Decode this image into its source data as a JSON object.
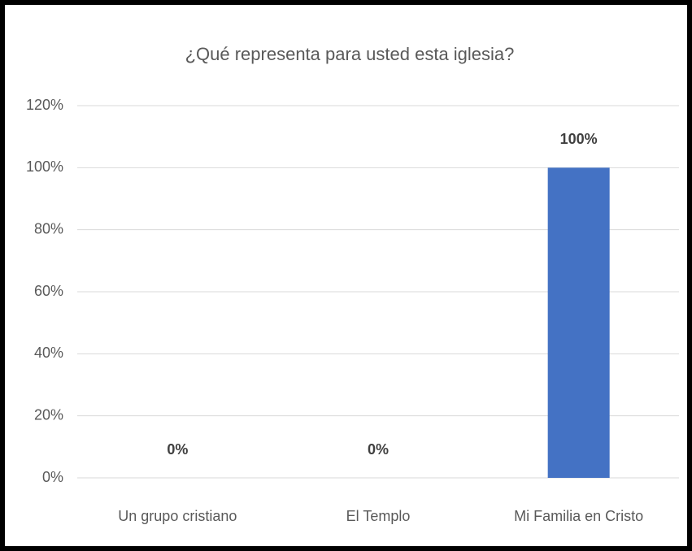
{
  "chart_data": {
    "type": "bar",
    "title": "¿Qué representa para usted esta iglesia?",
    "categories": [
      "Un grupo cristiano",
      "El Templo",
      "Mi Familia en Cristo"
    ],
    "values": [
      0,
      0,
      100
    ],
    "value_labels": [
      "0%",
      "0%",
      "100%"
    ],
    "color": "#4472c4",
    "ylim": [
      0,
      120
    ],
    "yticks": [
      {
        "value": 0,
        "label": "0%"
      },
      {
        "value": 20,
        "label": "20%"
      },
      {
        "value": 40,
        "label": "40%"
      },
      {
        "value": 60,
        "label": "60%"
      },
      {
        "value": 80,
        "label": "80%"
      },
      {
        "value": 100,
        "label": "100%"
      },
      {
        "value": 120,
        "label": "120%"
      }
    ],
    "grid": true
  }
}
